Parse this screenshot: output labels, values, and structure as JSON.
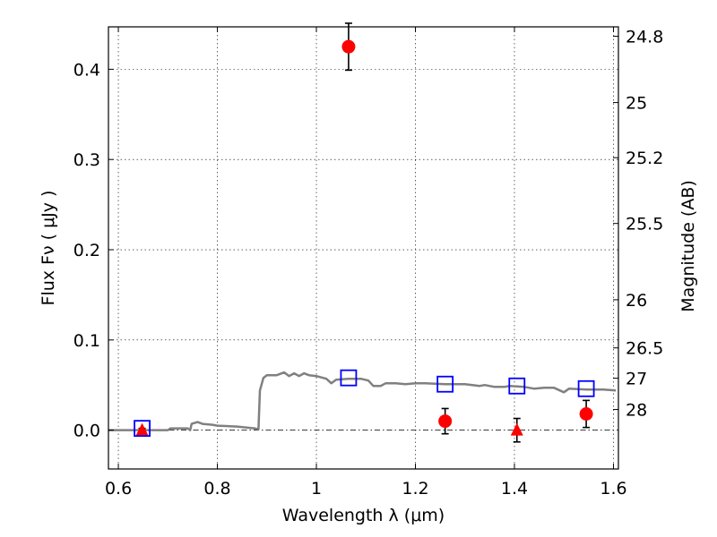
{
  "chart_data": {
    "type": "scatter",
    "xlabel": "Wavelength  λ (μm)",
    "ylabel": "Flux  Fν  ( μJy )",
    "y2label": "Magnitude (AB)",
    "xlim": [
      0.58,
      1.61
    ],
    "ylim": [
      -0.043,
      0.447
    ],
    "xticks": [
      0.6,
      0.8,
      1.0,
      1.2,
      1.4,
      1.6
    ],
    "xtick_labels": [
      "0.6",
      "0.8",
      "1",
      "1.2",
      "1.4",
      "1.6"
    ],
    "yticks": [
      0.0,
      0.1,
      0.2,
      0.3,
      0.4
    ],
    "ytick_labels": [
      "0.0",
      "0.1",
      "0.2",
      "0.3",
      "0.4"
    ],
    "mag_ticks": [
      24.8,
      25,
      25.2,
      25.5,
      26,
      26.5,
      27,
      28
    ],
    "mag_tick_labels": [
      "24.8",
      "25",
      "25.2",
      "25.5",
      "26",
      "26.5",
      "27",
      "28"
    ],
    "grid": true,
    "zero_line": true,
    "colors": {
      "detection": "#ff0000",
      "upper_limit": "#ff0000",
      "model_band": "#0000ff",
      "model_sed": "#808080",
      "error_bar": "#000000"
    },
    "series": [
      {
        "marker": "circle",
        "points": [
          {
            "x": 1.065,
            "y": 0.425,
            "yerr": 0.026
          },
          {
            "x": 1.26,
            "y": 0.01,
            "yerr": 0.014
          },
          {
            "x": 1.545,
            "y": 0.018,
            "yerr": 0.015
          }
        ]
      },
      {
        "marker": "triangle",
        "points": [
          {
            "x": 0.648,
            "y": 0.0,
            "yerr": 0.002
          },
          {
            "x": 1.405,
            "y": 0.0,
            "yerr": 0.013
          }
        ]
      },
      {
        "marker": "square",
        "points": [
          {
            "x": 0.648,
            "y": 0.002
          },
          {
            "x": 1.065,
            "y": 0.058
          },
          {
            "x": 1.26,
            "y": 0.051
          },
          {
            "x": 1.405,
            "y": 0.049
          },
          {
            "x": 1.545,
            "y": 0.046
          }
        ]
      },
      {
        "marker": "line",
        "points": [
          {
            "x": 0.58,
            "y": 0.0
          },
          {
            "x": 0.7,
            "y": 0.0
          },
          {
            "x": 0.705,
            "y": 0.002
          },
          {
            "x": 0.74,
            "y": 0.002
          },
          {
            "x": 0.745,
            "y": 0.0
          },
          {
            "x": 0.748,
            "y": 0.007
          },
          {
            "x": 0.76,
            "y": 0.009
          },
          {
            "x": 0.77,
            "y": 0.007
          },
          {
            "x": 0.79,
            "y": 0.006
          },
          {
            "x": 0.8,
            "y": 0.005
          },
          {
            "x": 0.84,
            "y": 0.004
          },
          {
            "x": 0.875,
            "y": 0.002
          },
          {
            "x": 0.883,
            "y": 0.001
          },
          {
            "x": 0.886,
            "y": 0.044
          },
          {
            "x": 0.893,
            "y": 0.058
          },
          {
            "x": 0.9,
            "y": 0.061
          },
          {
            "x": 0.92,
            "y": 0.061
          },
          {
            "x": 0.935,
            "y": 0.064
          },
          {
            "x": 0.945,
            "y": 0.06
          },
          {
            "x": 0.955,
            "y": 0.063
          },
          {
            "x": 0.965,
            "y": 0.06
          },
          {
            "x": 0.975,
            "y": 0.063
          },
          {
            "x": 0.985,
            "y": 0.061
          },
          {
            "x": 1.0,
            "y": 0.06
          },
          {
            "x": 1.02,
            "y": 0.057
          },
          {
            "x": 1.03,
            "y": 0.052
          },
          {
            "x": 1.04,
            "y": 0.056
          },
          {
            "x": 1.065,
            "y": 0.057
          },
          {
            "x": 1.09,
            "y": 0.057
          },
          {
            "x": 1.105,
            "y": 0.055
          },
          {
            "x": 1.115,
            "y": 0.049
          },
          {
            "x": 1.13,
            "y": 0.049
          },
          {
            "x": 1.14,
            "y": 0.052
          },
          {
            "x": 1.16,
            "y": 0.052
          },
          {
            "x": 1.18,
            "y": 0.051
          },
          {
            "x": 1.2,
            "y": 0.052
          },
          {
            "x": 1.22,
            "y": 0.052
          },
          {
            "x": 1.26,
            "y": 0.051
          },
          {
            "x": 1.3,
            "y": 0.051
          },
          {
            "x": 1.33,
            "y": 0.049
          },
          {
            "x": 1.34,
            "y": 0.05
          },
          {
            "x": 1.36,
            "y": 0.048
          },
          {
            "x": 1.38,
            "y": 0.048
          },
          {
            "x": 1.39,
            "y": 0.049
          },
          {
            "x": 1.42,
            "y": 0.048
          },
          {
            "x": 1.44,
            "y": 0.046
          },
          {
            "x": 1.46,
            "y": 0.047
          },
          {
            "x": 1.48,
            "y": 0.047
          },
          {
            "x": 1.5,
            "y": 0.042
          },
          {
            "x": 1.51,
            "y": 0.046
          },
          {
            "x": 1.545,
            "y": 0.045
          },
          {
            "x": 1.58,
            "y": 0.045
          },
          {
            "x": 1.605,
            "y": 0.044
          }
        ]
      }
    ]
  }
}
